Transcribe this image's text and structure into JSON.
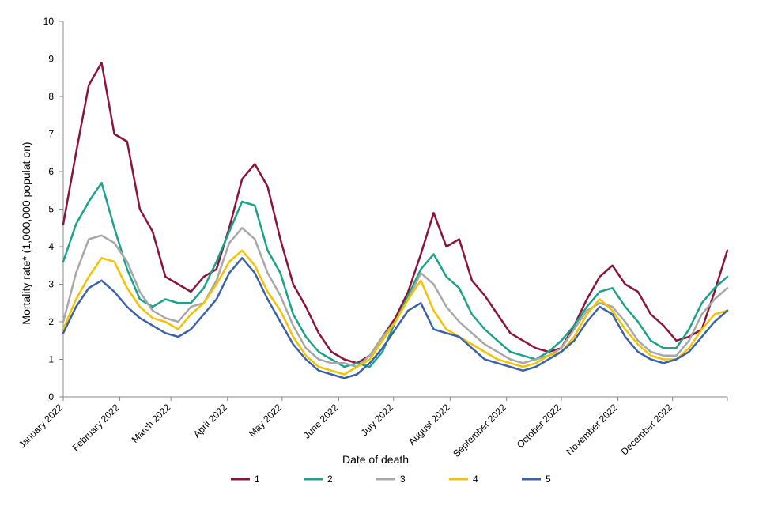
{
  "chart_data": {
    "type": "line",
    "title": "",
    "xlabel": "Date of death",
    "ylabel": "Mortality rate* (1,000,000 populat on)",
    "ylim": [
      0,
      10
    ],
    "yticks": [
      0,
      1,
      2,
      3,
      4,
      5,
      6,
      7,
      8,
      9,
      10
    ],
    "grid": false,
    "legend_position": "bottom",
    "x_unit": "week index (0 = 1 January 2022, 52 = 31 December 2022)",
    "xlim": [
      0,
      52
    ],
    "xtick_labels": [
      "January 2022",
      "February 2022",
      "March 2022",
      "April 2022",
      "May 2022",
      "June 2022",
      "July 2022",
      "August 2022",
      "September 2022",
      "October 2022",
      "November 2022",
      "December 2022"
    ],
    "xtick_positions": [
      0,
      4.43,
      8.43,
      12.86,
      17.14,
      21.57,
      25.86,
      30.29,
      34.71,
      39,
      43.43,
      47.71
    ],
    "x": [
      0,
      1,
      2,
      3,
      4,
      5,
      6,
      7,
      8,
      9,
      10,
      11,
      12,
      13,
      14,
      15,
      16,
      17,
      18,
      19,
      20,
      21,
      22,
      23,
      24,
      25,
      26,
      27,
      28,
      29,
      30,
      31,
      32,
      33,
      34,
      35,
      36,
      37,
      38,
      39,
      40,
      41,
      42,
      43,
      44,
      45,
      46,
      47,
      48,
      49,
      50,
      51,
      52
    ],
    "series": [
      {
        "name": "1",
        "color": "#8B1538",
        "values": [
          4.6,
          6.5,
          8.3,
          8.9,
          7.0,
          6.8,
          5.0,
          4.4,
          3.2,
          3.0,
          2.8,
          3.2,
          3.4,
          4.5,
          5.8,
          6.2,
          5.6,
          4.2,
          3.0,
          2.4,
          1.7,
          1.2,
          1.0,
          0.9,
          1.1,
          1.6,
          2.1,
          2.8,
          3.8,
          4.9,
          4.0,
          4.2,
          3.1,
          2.7,
          2.2,
          1.7,
          1.5,
          1.3,
          1.2,
          1.3,
          1.9,
          2.6,
          3.2,
          3.5,
          3.0,
          2.8,
          2.2,
          1.9,
          1.5,
          1.6,
          1.8,
          2.8,
          3.9
        ]
      },
      {
        "name": "2",
        "color": "#1BA28A",
        "values": [
          3.6,
          4.6,
          5.2,
          5.7,
          4.5,
          3.4,
          2.6,
          2.4,
          2.6,
          2.5,
          2.5,
          2.9,
          3.6,
          4.4,
          5.2,
          5.1,
          3.9,
          3.3,
          2.2,
          1.6,
          1.2,
          1.0,
          0.8,
          0.9,
          0.8,
          1.2,
          2.0,
          2.7,
          3.4,
          3.8,
          3.2,
          2.9,
          2.2,
          1.8,
          1.5,
          1.2,
          1.1,
          1.0,
          1.2,
          1.5,
          1.9,
          2.4,
          2.8,
          2.9,
          2.4,
          2.0,
          1.5,
          1.3,
          1.3,
          1.8,
          2.5,
          2.9,
          3.2
        ]
      },
      {
        "name": "3",
        "color": "#A8A8A8",
        "values": [
          2.0,
          3.3,
          4.2,
          4.3,
          4.1,
          3.6,
          2.8,
          2.3,
          2.1,
          2.0,
          2.4,
          2.5,
          3.1,
          4.1,
          4.5,
          4.2,
          3.3,
          2.7,
          1.9,
          1.3,
          1.0,
          0.9,
          0.9,
          0.8,
          1.1,
          1.6,
          2.0,
          2.6,
          3.3,
          3.0,
          2.4,
          2.0,
          1.7,
          1.4,
          1.2,
          1.0,
          0.9,
          1.0,
          1.1,
          1.3,
          1.8,
          2.3,
          2.5,
          2.4,
          2.0,
          1.5,
          1.2,
          1.1,
          1.1,
          1.5,
          2.2,
          2.6,
          2.9
        ]
      },
      {
        "name": "4",
        "color": "#F5C200",
        "values": [
          1.8,
          2.6,
          3.2,
          3.7,
          3.6,
          2.9,
          2.4,
          2.1,
          2.0,
          1.8,
          2.2,
          2.5,
          3.0,
          3.6,
          3.9,
          3.5,
          2.8,
          2.3,
          1.6,
          1.1,
          0.8,
          0.7,
          0.6,
          0.8,
          1.0,
          1.5,
          2.0,
          2.6,
          3.1,
          2.3,
          1.8,
          1.6,
          1.4,
          1.2,
          1.0,
          0.9,
          0.8,
          0.9,
          1.1,
          1.2,
          1.6,
          2.2,
          2.6,
          2.3,
          1.8,
          1.4,
          1.1,
          1.0,
          1.0,
          1.3,
          1.8,
          2.2,
          2.3
        ]
      },
      {
        "name": "5",
        "color": "#3A62A8",
        "values": [
          1.7,
          2.4,
          2.9,
          3.1,
          2.8,
          2.4,
          2.1,
          1.9,
          1.7,
          1.6,
          1.8,
          2.2,
          2.6,
          3.3,
          3.7,
          3.3,
          2.6,
          2.0,
          1.4,
          1.0,
          0.7,
          0.6,
          0.5,
          0.6,
          0.9,
          1.3,
          1.8,
          2.3,
          2.5,
          1.8,
          1.7,
          1.6,
          1.3,
          1.0,
          0.9,
          0.8,
          0.7,
          0.8,
          1.0,
          1.2,
          1.5,
          2.0,
          2.4,
          2.2,
          1.6,
          1.2,
          1.0,
          0.9,
          1.0,
          1.2,
          1.6,
          2.0,
          2.3
        ]
      }
    ]
  }
}
